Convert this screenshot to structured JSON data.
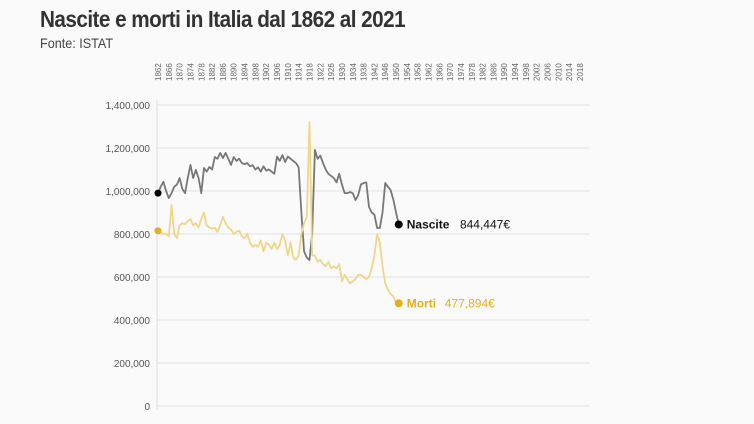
{
  "chart_data": {
    "type": "line",
    "title": "Nascite e morti in Italia dal 1862 al 2021",
    "subtitle": "Fonte: ISTAT",
    "xlim": [
      1862,
      2021
    ],
    "ylim": [
      0,
      1400000
    ],
    "x_ticks": [
      "1862",
      "1866",
      "1870",
      "1874",
      "1878",
      "1882",
      "1886",
      "1890",
      "1894",
      "1898",
      "1902",
      "1906",
      "1910",
      "1914",
      "1918",
      "1922",
      "1926",
      "1930",
      "1934",
      "1938",
      "1942",
      "1946",
      "1950",
      "1954",
      "1958",
      "1962",
      "1966",
      "1970",
      "1974",
      "1978",
      "1982",
      "1986",
      "1990",
      "1994",
      "1998",
      "2002",
      "2006",
      "2010",
      "2014",
      "2018"
    ],
    "x_ticks_position": "top",
    "y_ticks": [
      "0",
      "200,000",
      "400,000",
      "600,000",
      "800,000",
      "1,000,000",
      "1,200,000",
      "1,400,000"
    ],
    "y_tick_values": [
      0,
      200000,
      400000,
      600000,
      800000,
      1000000,
      1200000,
      1400000
    ],
    "grid": "horizontal",
    "x_start": 1862,
    "series": [
      {
        "name": "Nascite",
        "end_label": "844,447€",
        "color": "#777777",
        "dot_color": "#000000",
        "values": [
          990000,
          1020000,
          1043000,
          1000000,
          967000,
          990000,
          1020000,
          1030000,
          1060000,
          1010000,
          990000,
          1060000,
          1121000,
          1060000,
          1098000,
          1060000,
          990000,
          1107000,
          1090000,
          1112000,
          1100000,
          1158000,
          1150000,
          1177000,
          1153000,
          1177000,
          1150000,
          1121000,
          1158000,
          1140000,
          1150000,
          1130000,
          1125000,
          1130000,
          1115000,
          1120000,
          1100000,
          1110000,
          1090000,
          1115000,
          1095000,
          1100000,
          1090000,
          1080000,
          1160000,
          1140000,
          1167000,
          1135000,
          1160000,
          1150000,
          1140000,
          1130000,
          1110000,
          900000,
          720000,
          690000,
          679000,
          800000,
          1191000,
          1150000,
          1165000,
          1130000,
          1100000,
          1080000,
          1070000,
          1060000,
          1040000,
          1080000,
          1030000,
          990000,
          990000,
          995000,
          990000,
          958000,
          980000,
          1030000,
          1037000,
          1040000,
          926000,
          900000,
          890000,
          828000,
          828000,
          900000,
          1037000,
          1020000,
          1004000,
          960000,
          900000,
          844447
        ]
      },
      {
        "name": "Morti",
        "end_label": "477,894€",
        "color": "#f0d68a",
        "dot_color": "#e0b020",
        "values": [
          815000,
          810000,
          800000,
          800000,
          790000,
          935000,
          800000,
          780000,
          840000,
          850000,
          845000,
          860000,
          870000,
          840000,
          850000,
          830000,
          870000,
          900000,
          840000,
          830000,
          825000,
          830000,
          810000,
          840000,
          880000,
          850000,
          830000,
          820000,
          800000,
          810000,
          815000,
          790000,
          780000,
          800000,
          760000,
          740000,
          750000,
          740000,
          770000,
          720000,
          760000,
          750000,
          730000,
          760000,
          730000,
          750000,
          800000,
          770000,
          700000,
          760000,
          690000,
          680000,
          700000,
          800000,
          850000,
          880000,
          1320000,
          700000,
          700000,
          670000,
          680000,
          660000,
          650000,
          670000,
          640000,
          650000,
          640000,
          660000,
          580000,
          610000,
          590000,
          570000,
          580000,
          590000,
          610000,
          610000,
          600000,
          590000,
          600000,
          640000,
          700000,
          800000,
          760000,
          650000,
          570000,
          540000,
          520000,
          510000,
          480000,
          477894
        ]
      }
    ]
  }
}
